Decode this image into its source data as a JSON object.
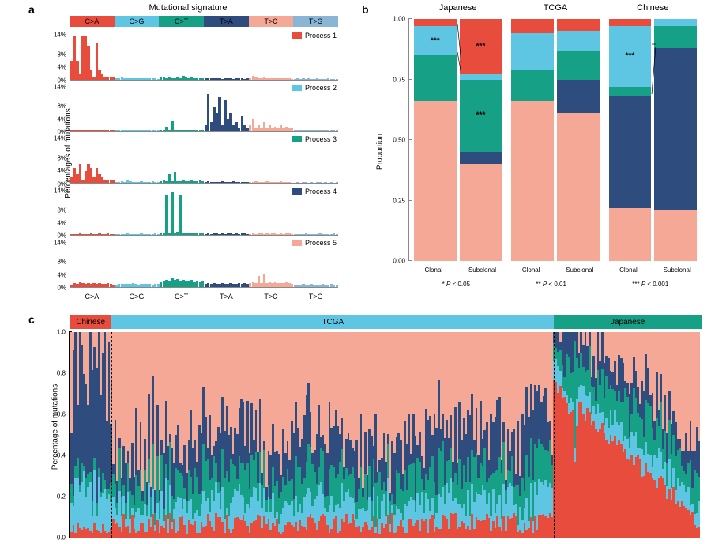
{
  "colors": {
    "p1": "#e84c3d",
    "p2": "#5ec5e2",
    "p3": "#16a085",
    "p4": "#2f4c7f",
    "p5": "#f6a896",
    "red_header_chinese": "#e84c3d",
    "blue_header_tcga": "#5ec5e2",
    "green_header_jp": "#16a085"
  },
  "panelA": {
    "label": "a",
    "title": "Mutational signature",
    "ylabel": "Percentages of mutations",
    "sig_types": [
      "C>A",
      "C>G",
      "C>T",
      "T>A",
      "T>C",
      "T>G"
    ],
    "sig_header_colors": [
      "#e84c3d",
      "#5ec5e2",
      "#16a085",
      "#2f4c7f",
      "#f6a896",
      "#8ab6d6"
    ],
    "yticks": [
      "14%",
      "8%",
      "4%",
      "0%"
    ],
    "ytick_pos": [
      14,
      8,
      4,
      0
    ],
    "ymax": 16,
    "processes": [
      {
        "name": "Process 1",
        "color": "#e84c3d",
        "bars": [
          6,
          14,
          6,
          2,
          14,
          14,
          11,
          3,
          1,
          12,
          3,
          2,
          1,
          1,
          1,
          1,
          0.5,
          0.3,
          0.6,
          0.4,
          0.5,
          0.3,
          0.4,
          0.5,
          0.3,
          0.4,
          0.4,
          0.3,
          0.5,
          0.4,
          0.3,
          0.2,
          0.6,
          0.8,
          0.5,
          0.7,
          0.4,
          0.5,
          0.6,
          0.4,
          1.2,
          0.8,
          0.5,
          0.6,
          0.4,
          0.5,
          0.3,
          0.4,
          0.3,
          0.4,
          0.3,
          0.5,
          0.4,
          0.3,
          0.2,
          0.3,
          0.4,
          0.3,
          0.2,
          0.3,
          0.4,
          0.3,
          0.2,
          0.3,
          0.5,
          1.2,
          0.6,
          0.4,
          0.5,
          0.8,
          0.4,
          0.5,
          0.3,
          0.4,
          0.5,
          0.3,
          0.4,
          0.5,
          0.3,
          0.2,
          0.2,
          0.3,
          0.2,
          0.3,
          0.2,
          0.3,
          0.2,
          0.2,
          0.3,
          0.2,
          0.2,
          0.2,
          0.3,
          0.2,
          0.2,
          0.2
        ]
      },
      {
        "name": "Process 2",
        "color": "#5ec5e2",
        "bars": [
          0.3,
          0.4,
          0.5,
          0.3,
          0.6,
          0.4,
          0.5,
          0.3,
          0.4,
          0.5,
          0.3,
          0.4,
          0.3,
          0.5,
          0.3,
          0.4,
          0.5,
          0.4,
          0.6,
          0.5,
          0.4,
          0.5,
          0.6,
          0.4,
          0.5,
          0.4,
          0.5,
          0.6,
          0.4,
          0.5,
          0.4,
          0.3,
          0.4,
          0.5,
          1.5,
          0.6,
          3.5,
          0.5,
          0.6,
          0.5,
          0.4,
          0.6,
          0.5,
          0.4,
          0.5,
          0.4,
          0.6,
          0.4,
          2,
          12,
          3,
          8,
          6,
          11,
          2,
          10,
          4,
          6,
          2,
          3,
          1,
          5,
          2,
          1,
          2,
          4,
          1,
          2,
          1,
          3,
          1,
          2,
          1,
          1.5,
          1,
          2,
          1,
          1.5,
          1,
          1,
          0.5,
          0.6,
          0.4,
          0.5,
          0.4,
          0.5,
          0.4,
          0.5,
          0.6,
          0.5,
          0.4,
          0.5,
          0.4,
          0.5,
          0.6,
          0.4
        ]
      },
      {
        "name": "Process 3",
        "color": "#16a085",
        "bars": [
          2,
          5,
          3,
          6,
          1,
          4,
          6,
          5,
          2,
          5,
          3,
          2,
          1,
          1,
          1,
          1,
          0.5,
          0.4,
          0.6,
          0.5,
          1,
          0.6,
          0.5,
          0.4,
          0.5,
          0.6,
          0.5,
          0.4,
          0.5,
          0.6,
          0.4,
          0.5,
          0.8,
          1,
          0.6,
          3,
          0.8,
          3.5,
          0.6,
          0.8,
          1,
          0.6,
          0.8,
          1,
          0.6,
          0.8,
          1,
          0.6,
          0.5,
          0.6,
          0.4,
          0.5,
          0.4,
          0.5,
          0.6,
          0.5,
          0.4,
          0.5,
          0.6,
          0.4,
          0.5,
          0.4,
          0.5,
          0.4,
          0.4,
          0.5,
          0.6,
          0.5,
          0.4,
          0.5,
          0.6,
          0.4,
          0.5,
          0.4,
          0.5,
          0.6,
          0.4,
          0.5,
          0.4,
          0.3,
          0.3,
          0.4,
          0.3,
          0.4,
          0.5,
          0.3,
          0.4,
          0.3,
          0.4,
          0.5,
          0.3,
          0.4,
          0.3,
          0.4,
          0.3,
          0.4
        ]
      },
      {
        "name": "Process 4",
        "color": "#2f4c7f",
        "bars": [
          0.3,
          0.4,
          0.3,
          0.5,
          0.4,
          0.3,
          0.4,
          0.5,
          0.3,
          0.4,
          0.5,
          0.3,
          0.4,
          0.5,
          0.3,
          0.4,
          0.3,
          0.4,
          0.3,
          0.4,
          0.5,
          0.3,
          0.4,
          0.3,
          0.4,
          0.5,
          0.3,
          0.4,
          0.3,
          0.4,
          0.5,
          0.3,
          0.5,
          0.6,
          13,
          0.7,
          14,
          0.6,
          0.8,
          13,
          0.6,
          0.7,
          0.5,
          0.6,
          0.7,
          0.5,
          0.6,
          0.5,
          0.4,
          0.5,
          0.4,
          0.5,
          0.6,
          0.4,
          0.5,
          0.4,
          0.5,
          0.6,
          0.4,
          0.5,
          0.4,
          0.5,
          0.6,
          0.4,
          0.4,
          0.5,
          0.4,
          0.5,
          0.6,
          0.4,
          0.5,
          0.4,
          0.5,
          0.6,
          0.4,
          0.5,
          0.4,
          0.5,
          0.6,
          0.4,
          0.3,
          0.4,
          0.3,
          0.4,
          0.5,
          0.3,
          0.4,
          0.3,
          0.4,
          0.5,
          0.3,
          0.4,
          0.3,
          0.4,
          0.5,
          0.3
        ]
      },
      {
        "name": "Process 5",
        "color": "#f6a896",
        "bars": [
          0.8,
          1.2,
          1,
          1.5,
          1.2,
          1,
          1.3,
          1.1,
          1.4,
          1,
          1.2,
          1.1,
          1,
          1.3,
          1,
          0.8,
          0.8,
          1,
          0.9,
          1.1,
          1,
          0.9,
          1.2,
          1,
          0.8,
          1,
          1.1,
          0.9,
          1,
          0.8,
          1.1,
          0.9,
          1.5,
          1.8,
          2.2,
          2,
          3,
          2.2,
          2.5,
          2,
          2.4,
          2,
          1.8,
          2.2,
          1.6,
          2,
          1.5,
          1.8,
          1,
          1.2,
          1,
          1.4,
          1.1,
          1,
          1.3,
          1.1,
          1,
          1.2,
          1,
          1.1,
          1.3,
          1,
          1.2,
          1,
          1.2,
          1.5,
          1.3,
          3.5,
          1.4,
          4,
          1.2,
          1.5,
          1.3,
          1.6,
          1.2,
          1.4,
          1.3,
          1.5,
          1.2,
          1,
          0.6,
          0.8,
          0.7,
          0.9,
          0.8,
          0.7,
          0.9,
          0.8,
          0.7,
          0.8,
          0.9,
          0.7,
          0.8,
          0.9,
          0.7,
          0.8
        ]
      }
    ]
  },
  "panelB": {
    "label": "b",
    "ylabel": "Proportion",
    "yticks": [
      "0.00",
      "0.25",
      "0.50",
      "0.75",
      "1.00"
    ],
    "ytick_pos": [
      0,
      0.25,
      0.5,
      0.75,
      1.0
    ],
    "cohorts": [
      {
        "name": "Japanese",
        "bars": [
          {
            "key": "Clonal",
            "stack": [
              {
                "c": "p5",
                "v": 0.66
              },
              {
                "c": "p3",
                "v": 0.19
              },
              {
                "c": "p2",
                "v": 0.12,
                "annot": "***"
              },
              {
                "c": "p1",
                "v": 0.03
              }
            ]
          },
          {
            "key": "Subclonal",
            "stack": [
              {
                "c": "p5",
                "v": 0.4
              },
              {
                "c": "p4",
                "v": 0.05
              },
              {
                "c": "p3",
                "v": 0.3,
                "annot": "***"
              },
              {
                "c": "p2",
                "v": 0.02
              },
              {
                "c": "p1",
                "v": 0.23,
                "annot": "***"
              }
            ]
          }
        ]
      },
      {
        "name": "TCGA",
        "bars": [
          {
            "key": "Clonal",
            "stack": [
              {
                "c": "p5",
                "v": 0.66
              },
              {
                "c": "p3",
                "v": 0.13
              },
              {
                "c": "p2",
                "v": 0.15
              },
              {
                "c": "p1",
                "v": 0.06
              }
            ]
          },
          {
            "key": "Subclonal",
            "stack": [
              {
                "c": "p5",
                "v": 0.61
              },
              {
                "c": "p4",
                "v": 0.14
              },
              {
                "c": "p3",
                "v": 0.12
              },
              {
                "c": "p2",
                "v": 0.08
              },
              {
                "c": "p1",
                "v": 0.05
              }
            ]
          }
        ]
      },
      {
        "name": "Chinese",
        "bars": [
          {
            "key": "Clonal",
            "stack": [
              {
                "c": "p5",
                "v": 0.22
              },
              {
                "c": "p4",
                "v": 0.46
              },
              {
                "c": "p3",
                "v": 0.04
              },
              {
                "c": "p2",
                "v": 0.25,
                "annot": "***"
              },
              {
                "c": "p1",
                "v": 0.03
              }
            ]
          },
          {
            "key": "Subclonal",
            "stack": [
              {
                "c": "p5",
                "v": 0.21
              },
              {
                "c": "p4",
                "v": 0.67
              },
              {
                "c": "p3",
                "v": 0.09
              },
              {
                "c": "p2",
                "v": 0.03
              }
            ]
          }
        ]
      }
    ],
    "xlabels": [
      "Clonal",
      "Subclonal"
    ],
    "pvals": [
      "*  P < 0.05",
      "**  P < 0.01",
      "***  P < 0.001"
    ]
  },
  "panelC": {
    "label": "c",
    "ylabel": "Percentage of mutations",
    "yticks": [
      "0.0",
      "0.2",
      "0.4",
      "0.6",
      "0.8",
      "1.0"
    ],
    "ytick_pos": [
      0,
      0.2,
      0.4,
      0.6,
      0.8,
      1.0
    ],
    "sections": [
      {
        "name": "Chinese",
        "color": "#e84c3d",
        "n": 20
      },
      {
        "name": "TCGA",
        "color": "#5ec5e2",
        "n": 210
      },
      {
        "name": "Japanese",
        "color": "#16a085",
        "n": 70
      }
    ]
  }
}
